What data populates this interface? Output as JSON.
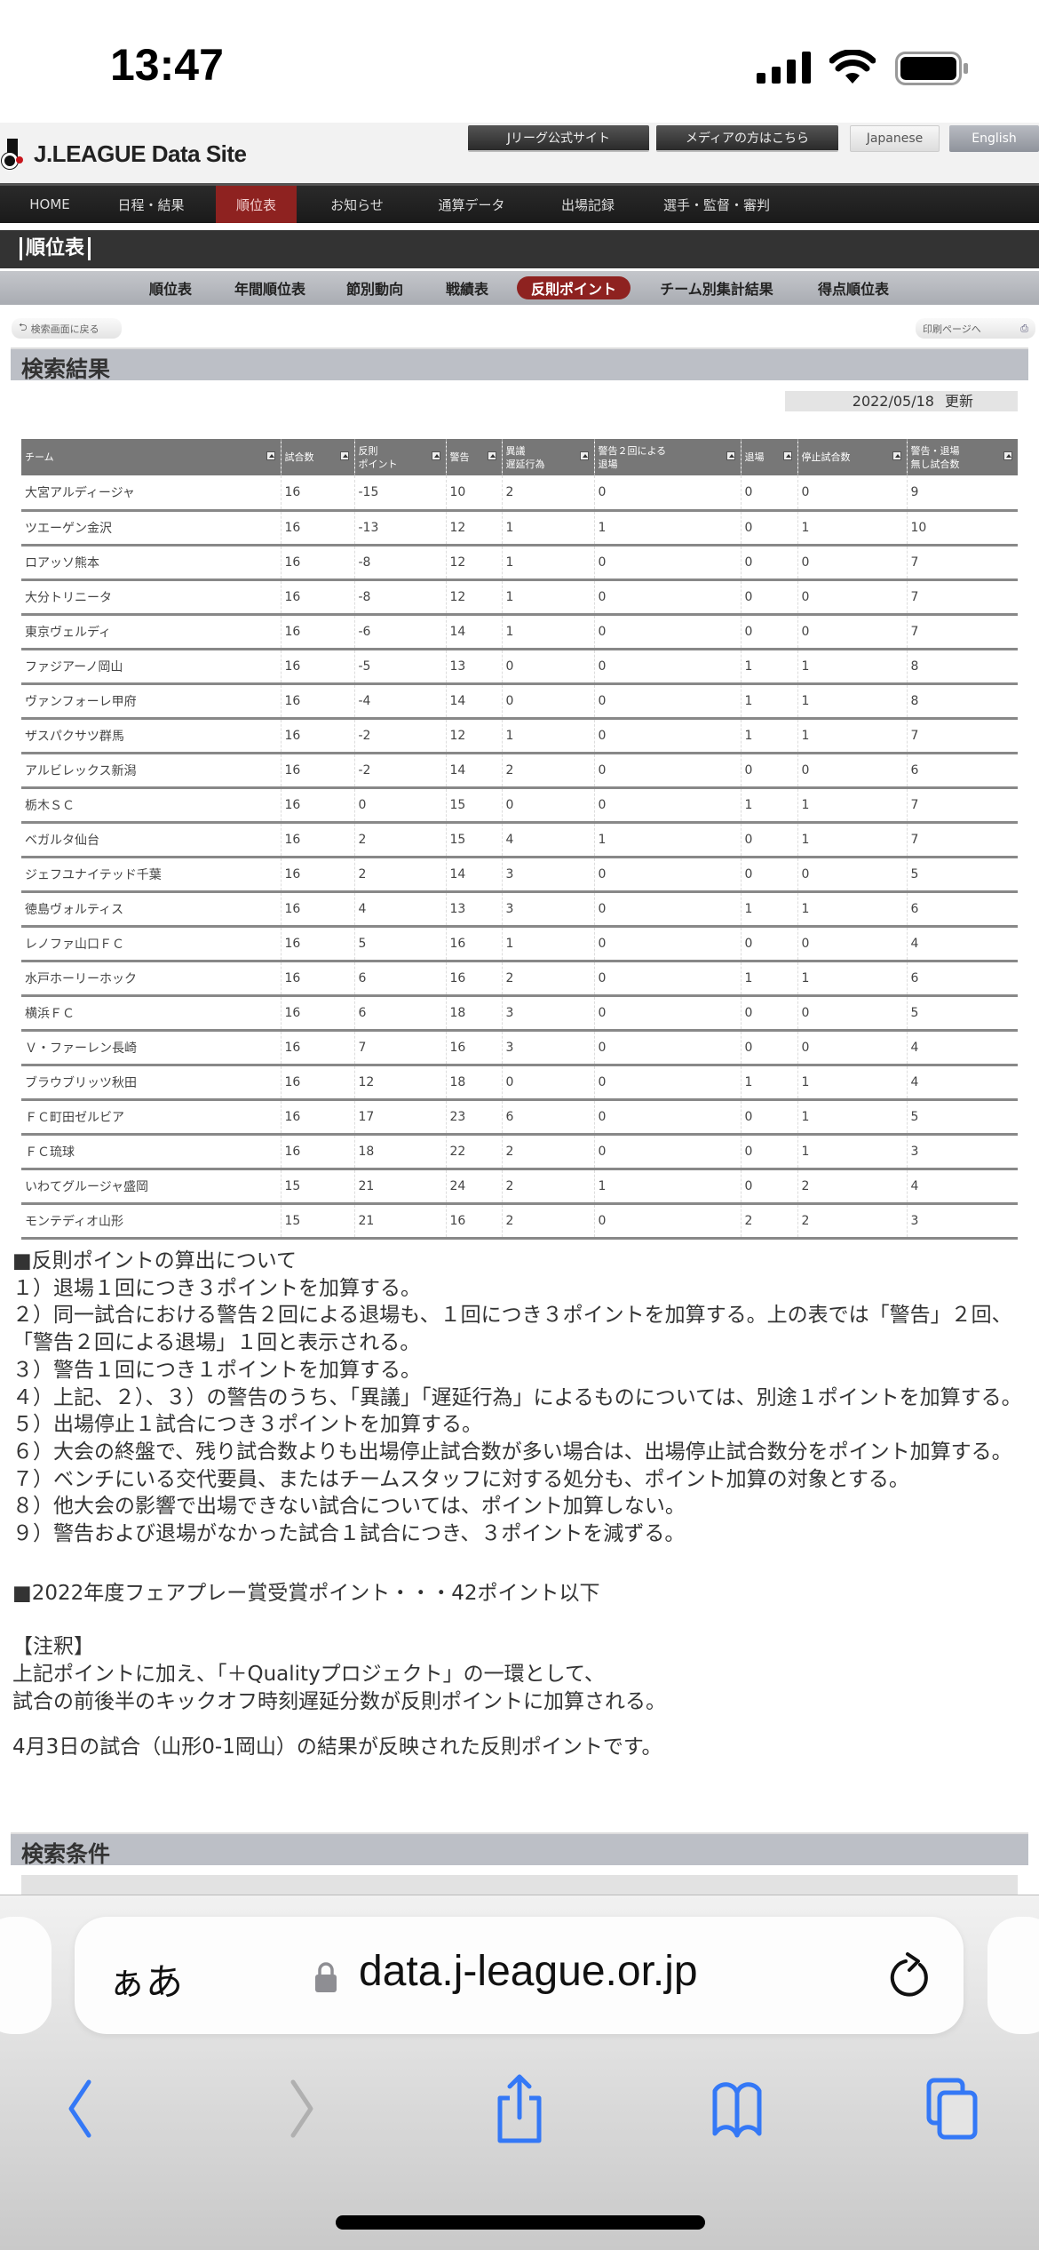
{
  "status_bar": {
    "time": "13:47"
  },
  "header": {
    "logo_text": "J.LEAGUE Data Site",
    "top_links": [
      "Jリーグ公式サイト",
      "メディアの方はこちら"
    ],
    "languages": [
      "Japanese",
      "English"
    ]
  },
  "nav": {
    "items": [
      "HOME",
      "日程・結果",
      "順位表",
      "お知らせ",
      "通算データ",
      "出場記録",
      "選手・監督・審判"
    ],
    "active": "順位表"
  },
  "section_title": "順位表",
  "subnav": {
    "items": [
      "順位表",
      "年間順位表",
      "節別動向",
      "戦績表",
      "反則ポイント",
      "チーム別集計結果",
      "得点順位表"
    ],
    "active": "反則ポイント"
  },
  "buttons": {
    "back": "検索画面に戻る",
    "print": "印刷ページへ"
  },
  "results_heading": "検索結果",
  "updated": {
    "date": "2022/05/18",
    "label": "更新"
  },
  "table": {
    "columns": [
      "チーム",
      "試合数",
      "反則\nポイント",
      "警告",
      "異議\n遅延行為",
      "警告２回による\n退場",
      "退場",
      "停止試合数",
      "警告・退場\n無し試合数"
    ],
    "rows": [
      [
        "大宮アルディージャ",
        "16",
        "-15",
        "10",
        "2",
        "0",
        "0",
        "0",
        "9"
      ],
      [
        "ツエーゲン金沢",
        "16",
        "-13",
        "12",
        "1",
        "1",
        "0",
        "1",
        "10"
      ],
      [
        "ロアッソ熊本",
        "16",
        "-8",
        "12",
        "1",
        "0",
        "0",
        "0",
        "7"
      ],
      [
        "大分トリニータ",
        "16",
        "-8",
        "12",
        "1",
        "0",
        "0",
        "0",
        "7"
      ],
      [
        "東京ヴェルディ",
        "16",
        "-6",
        "14",
        "1",
        "0",
        "0",
        "0",
        "7"
      ],
      [
        "ファジアーノ岡山",
        "16",
        "-5",
        "13",
        "0",
        "0",
        "1",
        "1",
        "8"
      ],
      [
        "ヴァンフォーレ甲府",
        "16",
        "-4",
        "14",
        "0",
        "0",
        "1",
        "1",
        "8"
      ],
      [
        "ザスパクサツ群馬",
        "16",
        "-2",
        "12",
        "1",
        "0",
        "1",
        "1",
        "7"
      ],
      [
        "アルビレックス新潟",
        "16",
        "-2",
        "14",
        "2",
        "0",
        "0",
        "0",
        "6"
      ],
      [
        "栃木ＳＣ",
        "16",
        "0",
        "15",
        "0",
        "0",
        "1",
        "1",
        "7"
      ],
      [
        "ベガルタ仙台",
        "16",
        "2",
        "15",
        "4",
        "1",
        "0",
        "1",
        "7"
      ],
      [
        "ジェフユナイテッド千葉",
        "16",
        "2",
        "14",
        "3",
        "0",
        "0",
        "0",
        "5"
      ],
      [
        "徳島ヴォルティス",
        "16",
        "4",
        "13",
        "3",
        "0",
        "1",
        "1",
        "6"
      ],
      [
        "レノファ山口ＦＣ",
        "16",
        "5",
        "16",
        "1",
        "0",
        "0",
        "0",
        "4"
      ],
      [
        "水戸ホーリーホック",
        "16",
        "6",
        "16",
        "2",
        "0",
        "1",
        "1",
        "6"
      ],
      [
        "横浜ＦＣ",
        "16",
        "6",
        "18",
        "3",
        "0",
        "0",
        "0",
        "5"
      ],
      [
        "Ｖ・ファーレン長崎",
        "16",
        "7",
        "16",
        "3",
        "0",
        "0",
        "0",
        "4"
      ],
      [
        "ブラウブリッツ秋田",
        "16",
        "12",
        "18",
        "0",
        "0",
        "1",
        "1",
        "4"
      ],
      [
        "ＦＣ町田ゼルビア",
        "16",
        "17",
        "23",
        "6",
        "0",
        "0",
        "1",
        "5"
      ],
      [
        "ＦＣ琉球",
        "16",
        "18",
        "22",
        "2",
        "0",
        "0",
        "1",
        "3"
      ],
      [
        "いわてグルージャ盛岡",
        "15",
        "21",
        "24",
        "2",
        "1",
        "0",
        "2",
        "4"
      ],
      [
        "モンテディオ山形",
        "15",
        "21",
        "16",
        "2",
        "0",
        "2",
        "2",
        "3"
      ]
    ]
  },
  "notes": {
    "lines": [
      "■反則ポイントの算出について",
      "１）退場１回につき３ポイントを加算する。",
      "２）同一試合における警告２回による退場も、１回につき３ポイントを加算する。上の表では「警告」２回、「警告２回による退場」１回と表示される。",
      "３）警告１回につき１ポイントを加算する。",
      "４）上記、２）、３）の警告のうち、「異議」「遅延行為」によるものについては、別途１ポイントを加算する。",
      "５）出場停止１試合につき３ポイントを加算する。",
      "６）大会の終盤で、残り試合数よりも出場停止試合数が多い場合は、出場停止試合数分をポイント加算する。",
      "７）ベンチにいる交代要員、またはチームスタッフに対する処分も、ポイント加算の対象とする。",
      "８）他大会の影響で出場できない試合については、ポイント加算しない。",
      "９）警告および退場がなかった試合１試合につき、３ポイントを減ずる。"
    ],
    "fairplay": "■2022年度フェアプレー賞受賞ポイント・・・42ポイント以下",
    "annotation_title": "【注釈】",
    "annotation_lines": [
      "上記ポイントに加え、「＋Qualityプロジェクト」の一環として、",
      "試合の前後半のキックオフ時刻遅延分数が反則ポイントに加算される。"
    ],
    "reflection": "4月3日の試合（山形0-1岡山）の結果が反映された反則ポイントです。"
  },
  "conditions_heading": "検索条件",
  "browser": {
    "aa": "ぁあ",
    "url": "data.j-league.or.jp",
    "accent": "#3478f6"
  }
}
